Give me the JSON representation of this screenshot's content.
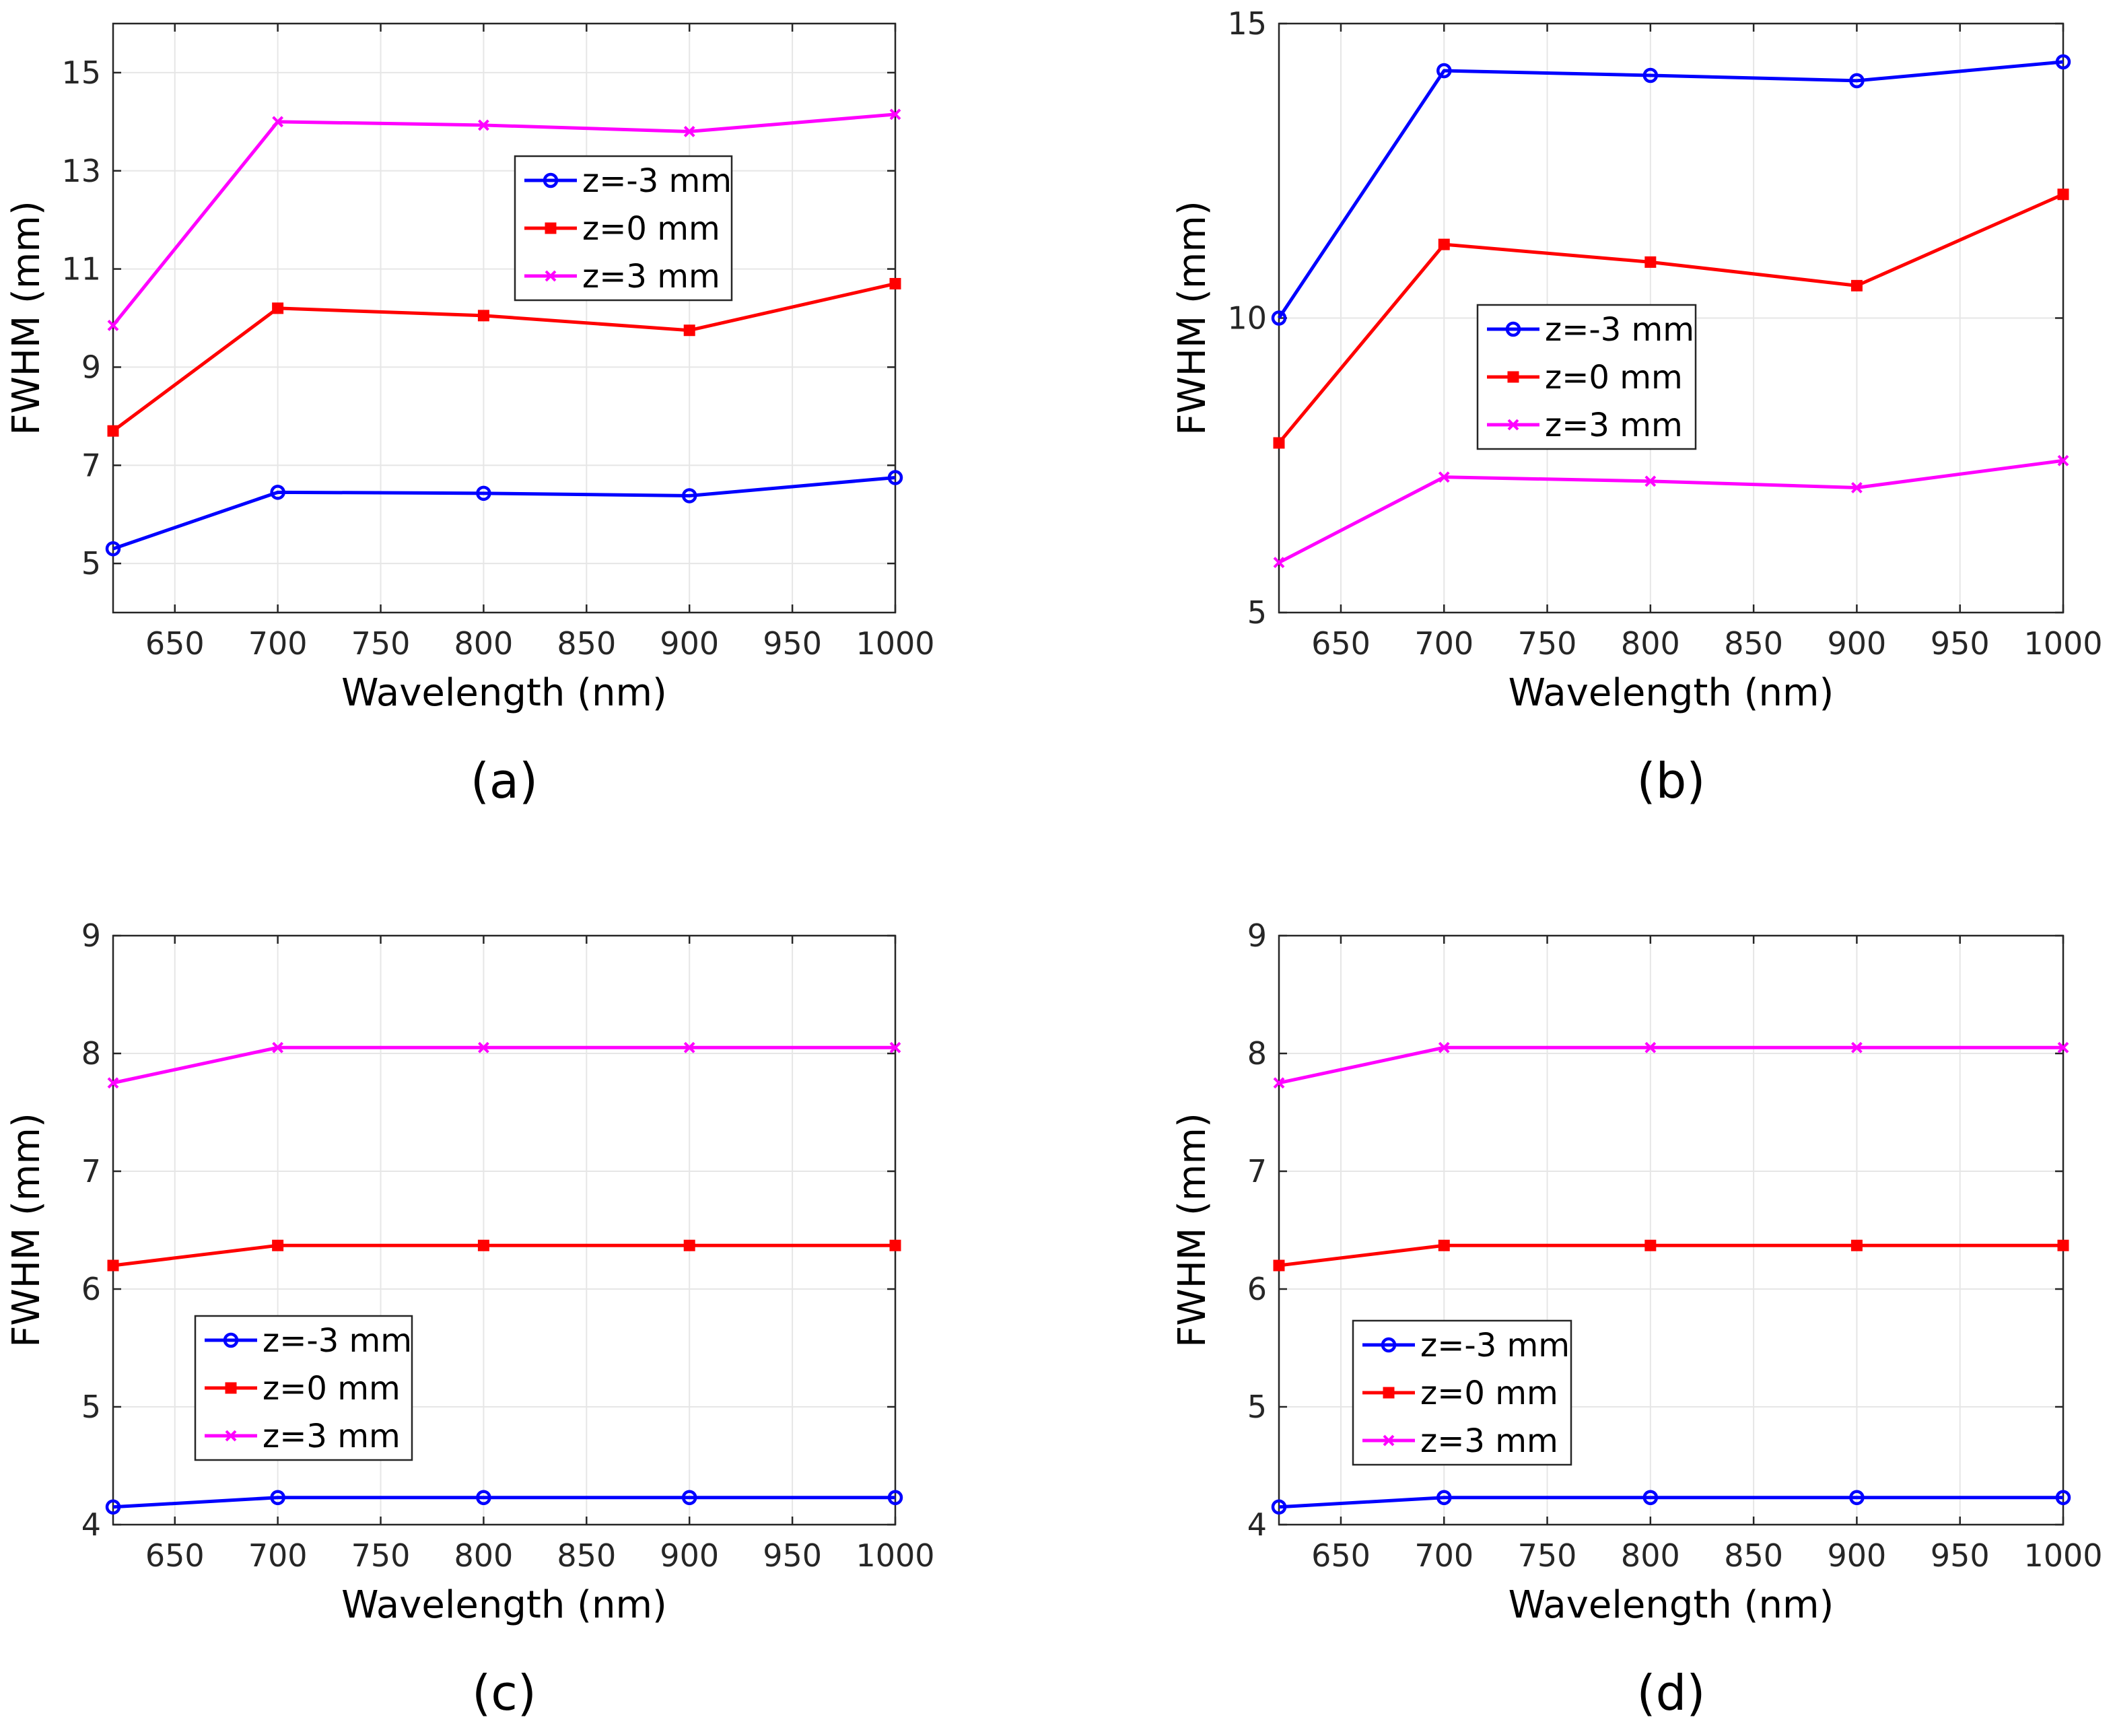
{
  "colors": {
    "z_neg3": "#0000ff",
    "z_0": "#ff0000",
    "z_3": "#ff00ff",
    "grid": "#e6e6e6",
    "axis": "#262626"
  },
  "chart_data": [
    {
      "type": "line",
      "panel_label": "(a)",
      "xlabel": "Wavelength (nm)",
      "ylabel": "FWHM (mm)",
      "xlim": [
        620,
        1000
      ],
      "ylim": [
        4,
        16
      ],
      "xticks": [
        650,
        700,
        750,
        800,
        850,
        900,
        950,
        1000
      ],
      "yticks": [
        5,
        7,
        9,
        11,
        13,
        15
      ],
      "grid": true,
      "legend_placement": "upper-center",
      "x": [
        620,
        700,
        800,
        900,
        1000
      ],
      "series": [
        {
          "name": "z=-3 mm",
          "color": "#0000ff",
          "marker": "circle",
          "values": [
            5.3,
            6.45,
            6.43,
            6.38,
            6.75
          ]
        },
        {
          "name": "z=0 mm",
          "color": "#ff0000",
          "marker": "square",
          "values": [
            7.7,
            10.2,
            10.05,
            9.75,
            10.7
          ]
        },
        {
          "name": "z=3 mm",
          "color": "#ff00ff",
          "marker": "x",
          "values": [
            9.85,
            14.0,
            13.93,
            13.8,
            14.15
          ]
        }
      ]
    },
    {
      "type": "line",
      "panel_label": "(b)",
      "xlabel": "Wavelength (nm)",
      "ylabel": "FWHM (mm)",
      "xlim": [
        620,
        1000
      ],
      "ylim": [
        5,
        15
      ],
      "xticks": [
        650,
        700,
        750,
        800,
        850,
        900,
        950,
        1000
      ],
      "yticks": [
        5,
        10,
        15
      ],
      "grid": true,
      "legend_placement": "center-left",
      "x": [
        620,
        700,
        800,
        900,
        1000
      ],
      "series": [
        {
          "name": "z=-3 mm",
          "color": "#0000ff",
          "marker": "circle",
          "values": [
            10.0,
            14.2,
            14.12,
            14.03,
            14.35
          ]
        },
        {
          "name": "z=0 mm",
          "color": "#ff0000",
          "marker": "square",
          "values": [
            7.88,
            11.25,
            10.95,
            10.55,
            12.1
          ]
        },
        {
          "name": "z=3 mm",
          "color": "#ff00ff",
          "marker": "x",
          "values": [
            5.85,
            7.3,
            7.23,
            7.12,
            7.58
          ]
        }
      ]
    },
    {
      "type": "line",
      "panel_label": "(c)",
      "xlabel": "Wavelength (nm)",
      "ylabel": "FWHM (mm)",
      "xlim": [
        620,
        1000
      ],
      "ylim": [
        4,
        9
      ],
      "xticks": [
        650,
        700,
        750,
        800,
        850,
        900,
        950,
        1000
      ],
      "yticks": [
        4,
        5,
        6,
        7,
        8,
        9
      ],
      "grid": true,
      "legend_placement": "lower-left",
      "x": [
        620,
        700,
        800,
        900,
        1000
      ],
      "series": [
        {
          "name": "z=-3 mm",
          "color": "#0000ff",
          "marker": "circle",
          "values": [
            4.15,
            4.23,
            4.23,
            4.23,
            4.23
          ]
        },
        {
          "name": "z=0 mm",
          "color": "#ff0000",
          "marker": "square",
          "values": [
            6.2,
            6.37,
            6.37,
            6.37,
            6.37
          ]
        },
        {
          "name": "z=3 mm",
          "color": "#ff00ff",
          "marker": "x",
          "values": [
            7.75,
            8.05,
            8.05,
            8.05,
            8.05
          ]
        }
      ]
    },
    {
      "type": "line",
      "panel_label": "(d)",
      "xlabel": "Wavelength (nm)",
      "ylabel": "FWHM (mm)",
      "xlim": [
        620,
        1000
      ],
      "ylim": [
        4,
        9
      ],
      "xticks": [
        650,
        700,
        750,
        800,
        850,
        900,
        950,
        1000
      ],
      "yticks": [
        4,
        5,
        6,
        7,
        8,
        9
      ],
      "grid": true,
      "legend_placement": "lower-left",
      "x": [
        620,
        700,
        800,
        900,
        1000
      ],
      "series": [
        {
          "name": "z=-3 mm",
          "color": "#0000ff",
          "marker": "circle",
          "values": [
            4.15,
            4.23,
            4.23,
            4.23,
            4.23
          ]
        },
        {
          "name": "z=0 mm",
          "color": "#ff0000",
          "marker": "square",
          "values": [
            6.2,
            6.37,
            6.37,
            6.37,
            6.37
          ]
        },
        {
          "name": "z=3 mm",
          "color": "#ff00ff",
          "marker": "x",
          "values": [
            7.75,
            8.05,
            8.05,
            8.05,
            8.05
          ]
        }
      ]
    }
  ]
}
